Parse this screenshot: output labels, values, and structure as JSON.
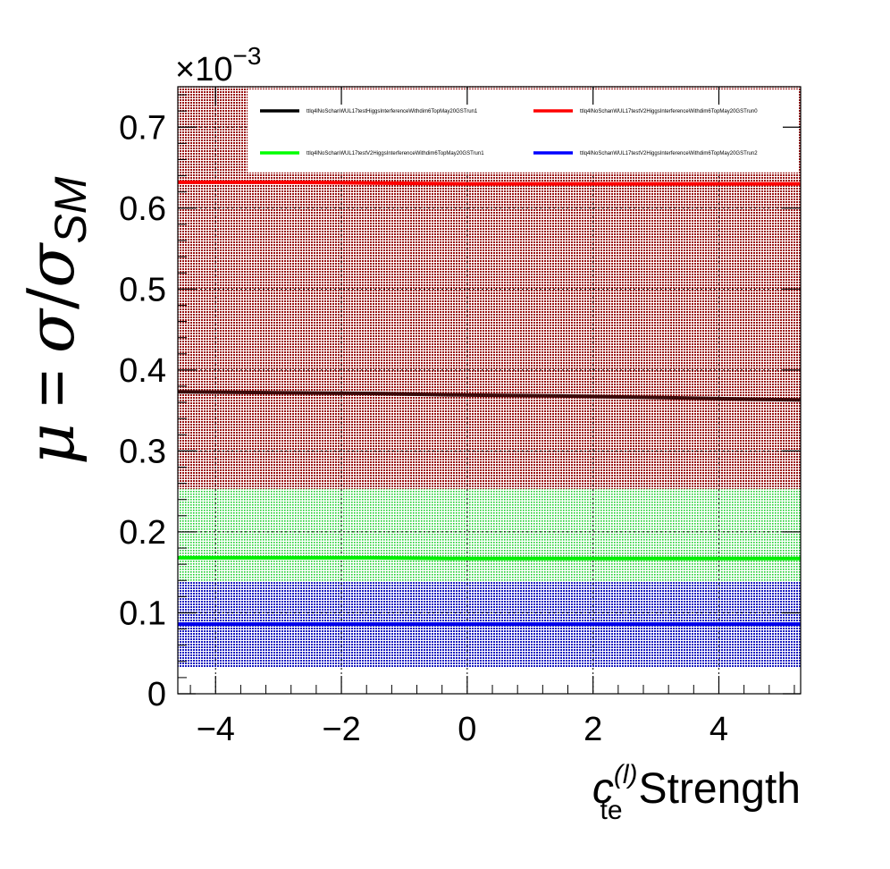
{
  "chart_data": {
    "type": "line",
    "xlabel": {
      "symbol": "c",
      "subscript": "te",
      "superscript": "(l)",
      "suffix": "Strength"
    },
    "ylabel": {
      "mu": "μ",
      "equals": "=",
      "sigma": "σ",
      "slash": "/",
      "sigma_sm": "σ",
      "sm_subscript": "SM"
    },
    "y_multiplier": "×10",
    "y_multiplier_exp": "−3",
    "xlim": [
      -4.6,
      5.3
    ],
    "ylim": [
      0,
      0.75
    ],
    "x_ticks": [
      -4,
      -2,
      0,
      2,
      4
    ],
    "x_tick_labels": [
      "−4",
      "−2",
      "0",
      "2",
      "4"
    ],
    "y_ticks": [
      0,
      0.1,
      0.2,
      0.3,
      0.4,
      0.5,
      0.6,
      0.7
    ],
    "y_tick_labels": [
      "0",
      "0.1",
      "0.2",
      "0.3",
      "0.4",
      "0.5",
      "0.6",
      "0.7"
    ],
    "grid": true,
    "legend_position": "top",
    "series": [
      {
        "name": "ttlq4lNoSchanWUL17testHiggsInterferenceWithdim6TopMay20GSTrun1",
        "color": "#000000",
        "line_color": "#3a0a0a",
        "band_color": "#7a1a1a",
        "x": [
          -4.6,
          -3,
          -1.5,
          0,
          1.5,
          3,
          4.5,
          5.3
        ],
        "y": [
          0.373,
          0.372,
          0.371,
          0.369,
          0.368,
          0.366,
          0.364,
          0.363
        ],
        "band": [
          0.253,
          0.75
        ]
      },
      {
        "name": "ttlq4lNoSchanWUL17testV2HiggsInterferenceWithdim6TopMay20GSTrun0",
        "color": "#ff0000",
        "line_color": "#ff0000",
        "band_color": "#ff3030",
        "x": [
          -4.6,
          -3,
          -1.5,
          0,
          1.5,
          3,
          4.5,
          5.3
        ],
        "y": [
          0.632,
          0.632,
          0.631,
          0.63,
          0.63,
          0.63,
          0.63,
          0.63
        ],
        "band": [
          0.253,
          0.75
        ]
      },
      {
        "name": "ttlq4lNoSchanWUL17testV2HiggsInterferenceWithdim6TopMay20GSTrun1",
        "color": "#00ff00",
        "line_color": "#00ee00",
        "band_color": "#22d022",
        "x": [
          -4.6,
          -3,
          -1.5,
          0,
          1.5,
          3,
          4.5,
          5.3
        ],
        "y": [
          0.168,
          0.168,
          0.168,
          0.167,
          0.167,
          0.167,
          0.167,
          0.167
        ],
        "band": [
          0.138,
          0.253
        ]
      },
      {
        "name": "ttlq4lNoSchanWUL17testV2HiggsInterferenceWithdim6TopMay20GSTrun2",
        "color": "#0000ff",
        "line_color": "#0000ee",
        "band_color": "#2222c8",
        "x": [
          -4.6,
          -3,
          -1.5,
          0,
          1.5,
          3,
          4.5,
          5.3
        ],
        "y": [
          0.086,
          0.086,
          0.086,
          0.086,
          0.086,
          0.086,
          0.086,
          0.086
        ],
        "band": [
          0.033,
          0.138
        ]
      }
    ]
  }
}
